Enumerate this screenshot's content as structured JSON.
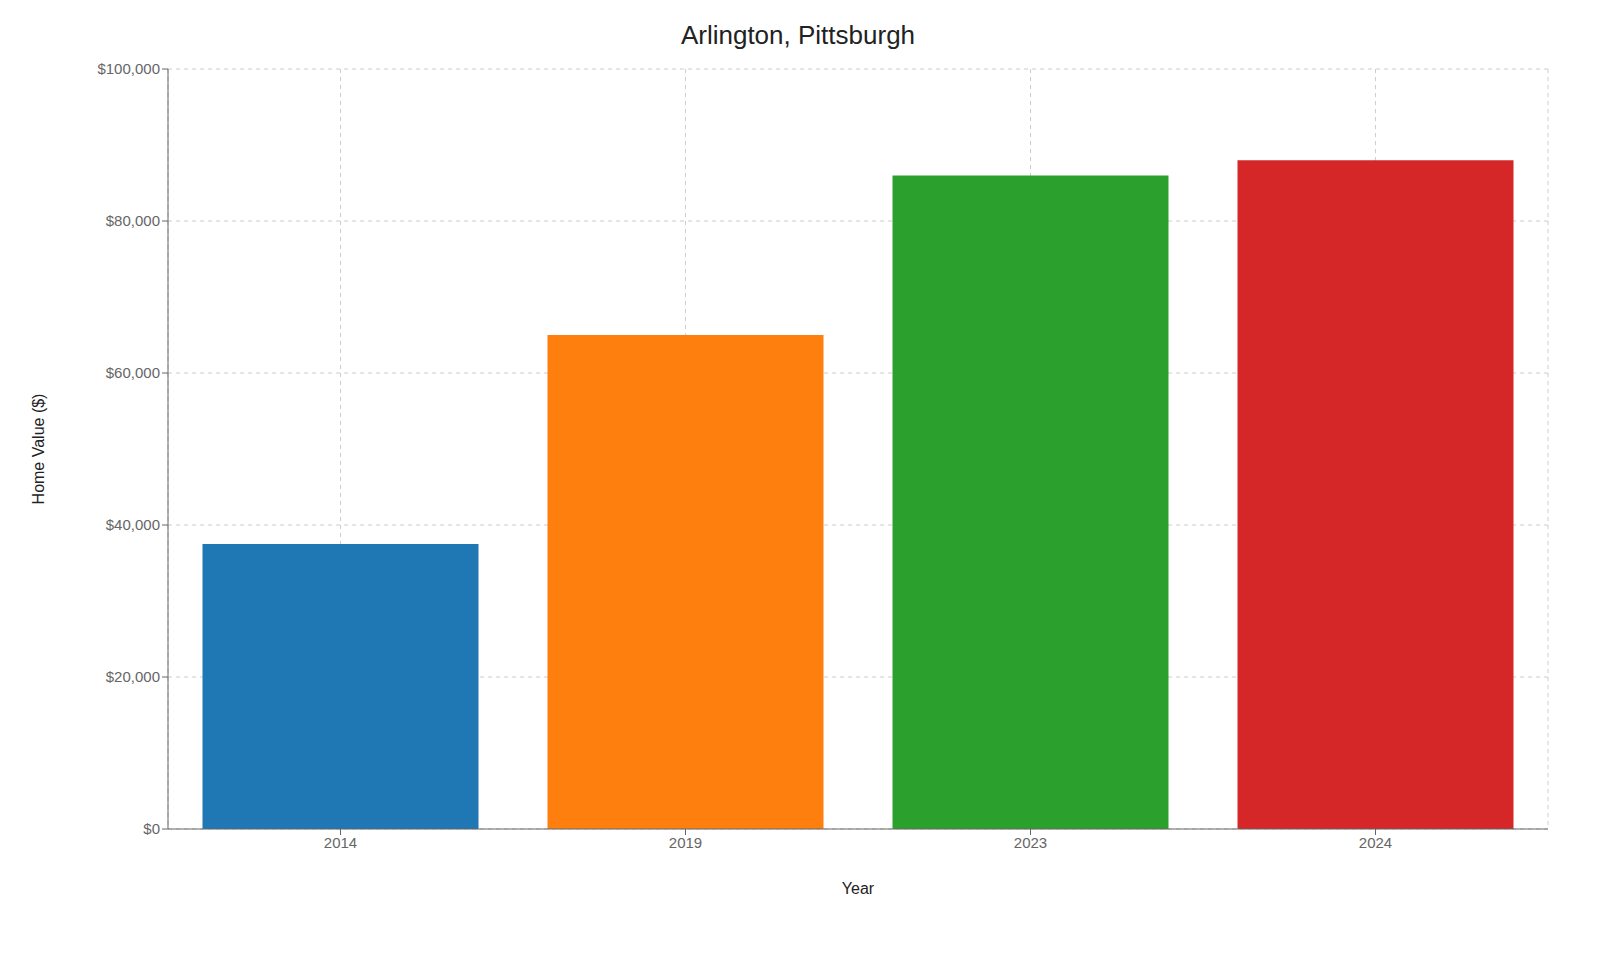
{
  "chart_data": {
    "type": "bar",
    "title": "Arlington, Pittsburgh",
    "xlabel": "Year",
    "ylabel": "Home Value ($)",
    "categories": [
      "2014",
      "2019",
      "2023",
      "2024"
    ],
    "values": [
      37500,
      65000,
      86000,
      88000
    ],
    "colors": [
      "#1f77b4",
      "#ff7f0e",
      "#2ca02c",
      "#d62728"
    ],
    "ylim": [
      0,
      100000
    ],
    "yticks": [
      {
        "value": 0,
        "label": "$0"
      },
      {
        "value": 20000,
        "label": "$20,000"
      },
      {
        "value": 40000,
        "label": "$40,000"
      },
      {
        "value": 60000,
        "label": "$60,000"
      },
      {
        "value": 80000,
        "label": "$80,000"
      },
      {
        "value": 100000,
        "label": "$100,000"
      }
    ],
    "grid": true
  }
}
